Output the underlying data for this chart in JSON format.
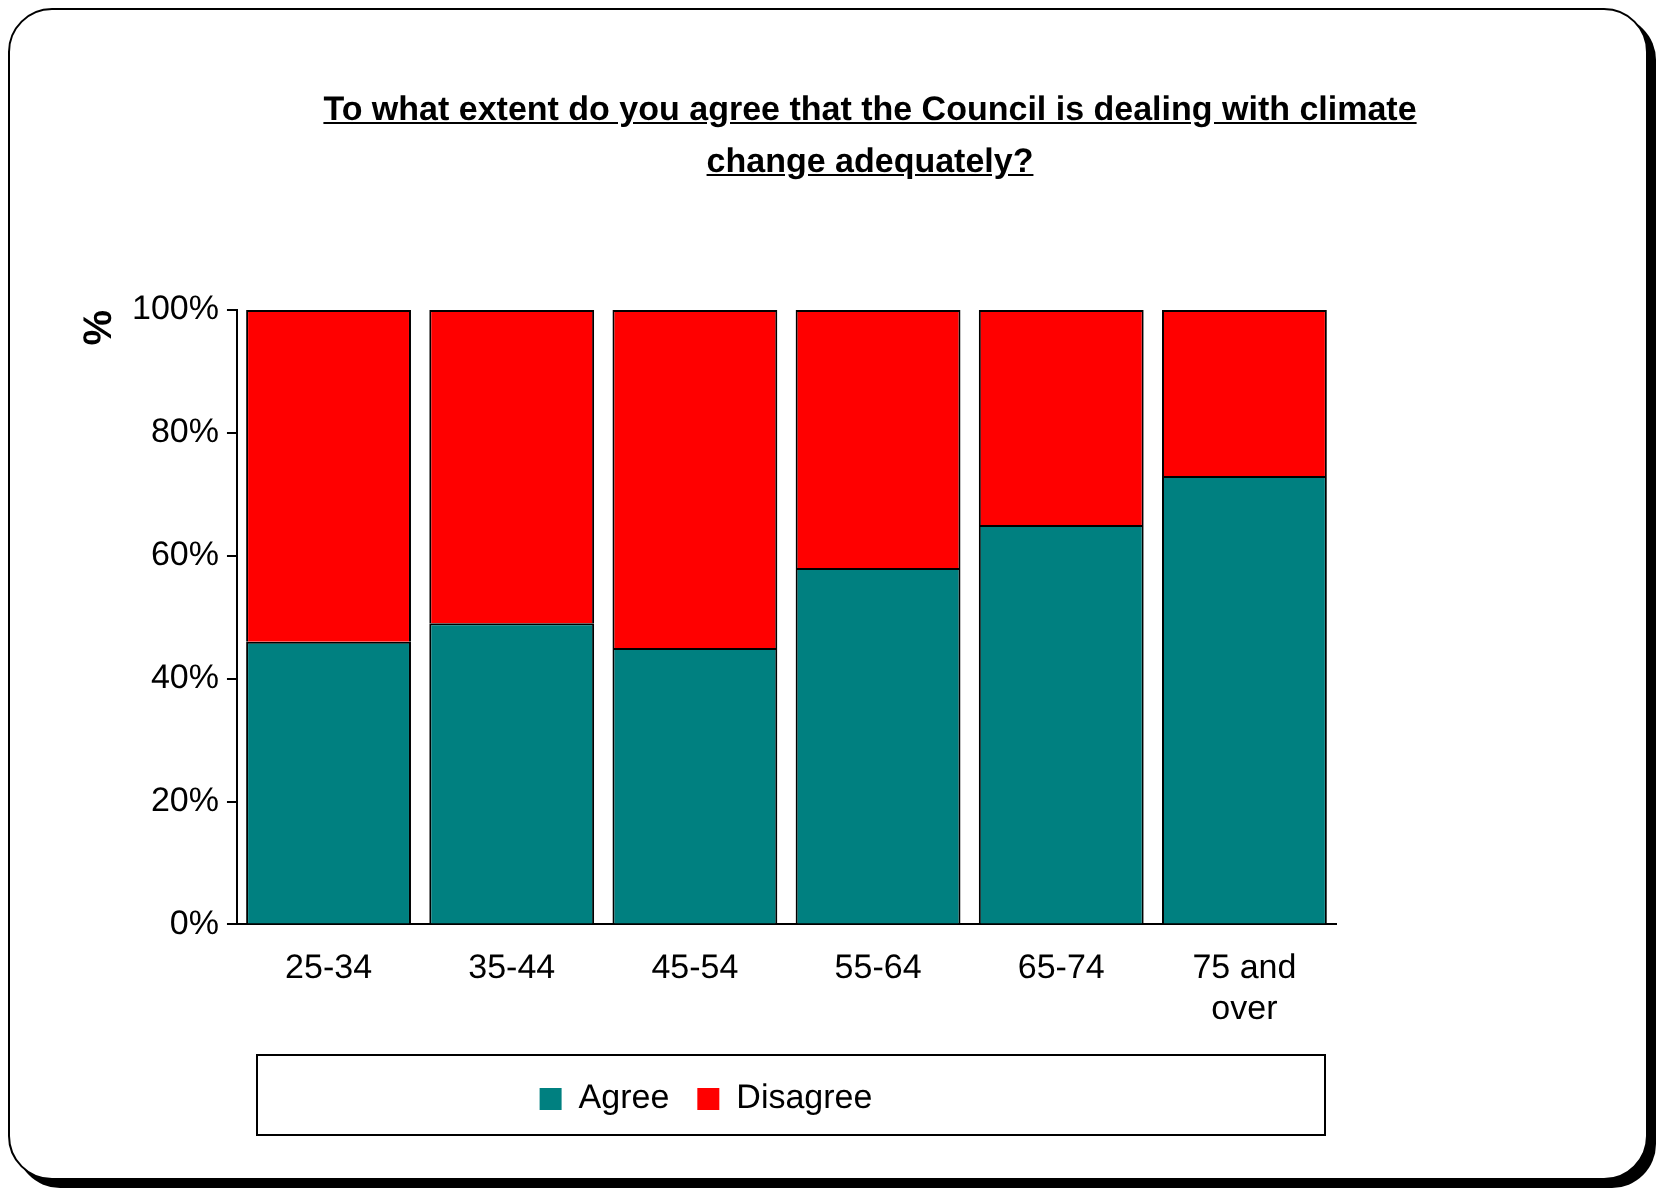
{
  "chart_data": {
    "type": "bar",
    "title": "To what extent do you agree that the Council is dealing with climate change adequately?",
    "ylabel": "%",
    "categories": [
      "25-34",
      "35-44",
      "45-54",
      "55-64",
      "65-74",
      "75 and over"
    ],
    "stacked": true,
    "series": [
      {
        "name": "Agree",
        "color": "#008080",
        "values": [
          46,
          49,
          45,
          58,
          65,
          73
        ]
      },
      {
        "name": "Disagree",
        "color": "#ff0000",
        "values": [
          54,
          51,
          55,
          42,
          35,
          27
        ]
      }
    ],
    "ylim": [
      0,
      100
    ],
    "yticks": [
      {
        "value": 0,
        "label": "0%"
      },
      {
        "value": 20,
        "label": "20%"
      },
      {
        "value": 40,
        "label": "40%"
      },
      {
        "value": 60,
        "label": "60%"
      },
      {
        "value": 80,
        "label": "80%"
      },
      {
        "value": 100,
        "label": "100%"
      }
    ],
    "grid": false,
    "legend": "bottom"
  }
}
